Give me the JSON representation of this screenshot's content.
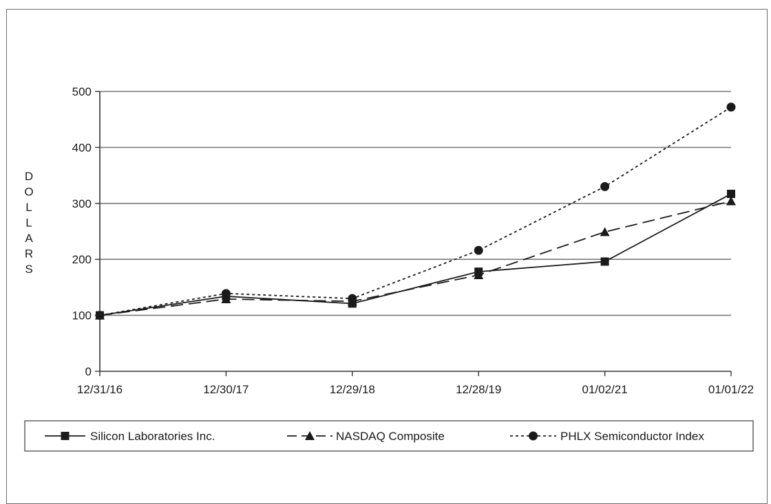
{
  "chart_data": {
    "type": "line",
    "title": "",
    "xlabel": "",
    "ylabel": "DOLLARS",
    "x": [
      "12/31/16",
      "12/30/17",
      "12/29/18",
      "12/28/19",
      "01/02/21",
      "01/01/22"
    ],
    "ylim": [
      0,
      500
    ],
    "yticks": [
      0,
      100,
      200,
      300,
      400,
      500
    ],
    "grid": true,
    "legend_position": "bottom",
    "series": [
      {
        "name": "Silicon Laboratories Inc.",
        "marker": "square",
        "line_style": "solid",
        "values": [
          100,
          134,
          121,
          178,
          196,
          317
        ]
      },
      {
        "name": "NASDAQ Composite",
        "marker": "triangle",
        "line_style": "dashed",
        "values": [
          100,
          129,
          125,
          172,
          249,
          304
        ]
      },
      {
        "name": "PHLX Semiconductor Index",
        "marker": "circle",
        "line_style": "dotted",
        "values": [
          100,
          139,
          130,
          216,
          330,
          472
        ]
      }
    ],
    "colors": {
      "line": "#1a1a1a",
      "grid": "#7a7a7a",
      "frame": "#6b6b6b"
    }
  }
}
